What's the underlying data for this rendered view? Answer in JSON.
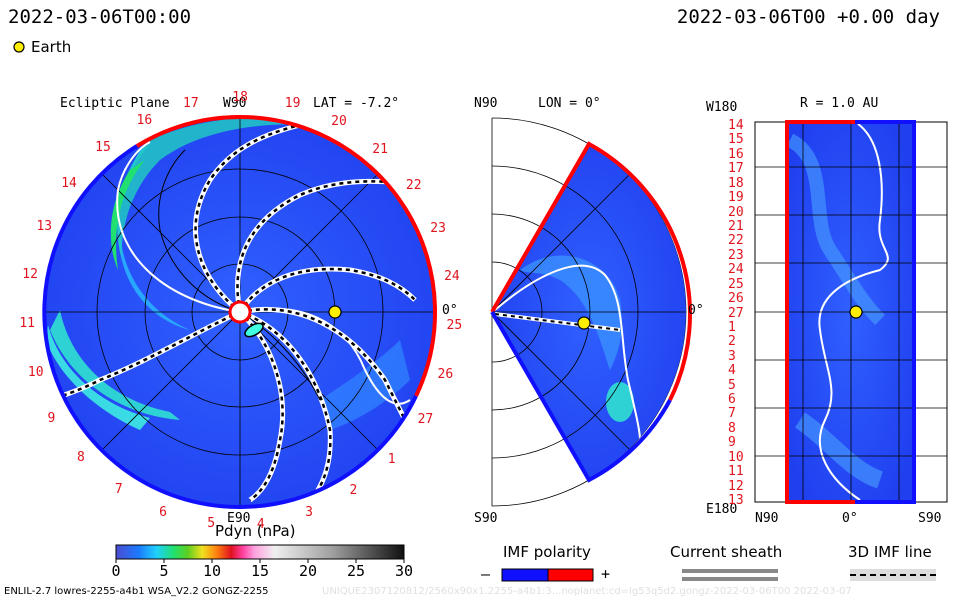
{
  "header": {
    "date_left": "2022-03-06T00:00",
    "date_right": "2022-03-06T00 +0.00 day",
    "legend_earth": "Earth"
  },
  "ecliptic": {
    "title": "Ecliptic Plane",
    "top_label": "W90",
    "lat_label": "LAT = -7.2°",
    "right_label": "0°",
    "bottom_label": "E90",
    "carrington_labels": [
      "19",
      "20",
      "21",
      "22",
      "23",
      "24",
      "25",
      "26",
      "27",
      "1",
      "2",
      "3",
      "4",
      "5",
      "6",
      "7",
      "8",
      "9",
      "10",
      "11",
      "12",
      "13",
      "14",
      "15",
      "16",
      "17",
      "18"
    ]
  },
  "meridional": {
    "top_label": "N90",
    "lon_label": "LON = 0°",
    "right_label": "0°",
    "bottom_label": "S90"
  },
  "map": {
    "top_left_label": "W180",
    "r_label": "R = 1.0 AU",
    "bottom_left_label": "E180",
    "x_labels": [
      "N90",
      "0°",
      "S90"
    ],
    "y_labels": [
      "14",
      "15",
      "16",
      "17",
      "18",
      "19",
      "20",
      "21",
      "22",
      "23",
      "24",
      "25",
      "26",
      "27",
      "1",
      "2",
      "3",
      "4",
      "5",
      "6",
      "7",
      "8",
      "9",
      "10",
      "11",
      "12",
      "13"
    ]
  },
  "colorbar": {
    "title": "Pdyn (nPa)",
    "ticks": [
      "0",
      "5",
      "10",
      "15",
      "20",
      "25",
      "30"
    ],
    "min": 0,
    "max": 30
  },
  "legend": {
    "imf_title": "IMF polarity",
    "imf_minus": "–",
    "imf_plus": "+",
    "sheath_title": "Current sheath",
    "imf_line_title": "3D IMF line",
    "colors": {
      "negative": "#1010ff",
      "positive": "#ff0000"
    }
  },
  "footer": {
    "left": "ENLIL-2.7 lowres-2255-a4b1 WSA_V2.2 GONGZ-2255",
    "right": "UNIQUE2307120812/2560x90x1.2255-a4b1:3...noplanet:cd=lg53q5d2.gongz-2022-03-06T00   2022-03-07"
  }
}
